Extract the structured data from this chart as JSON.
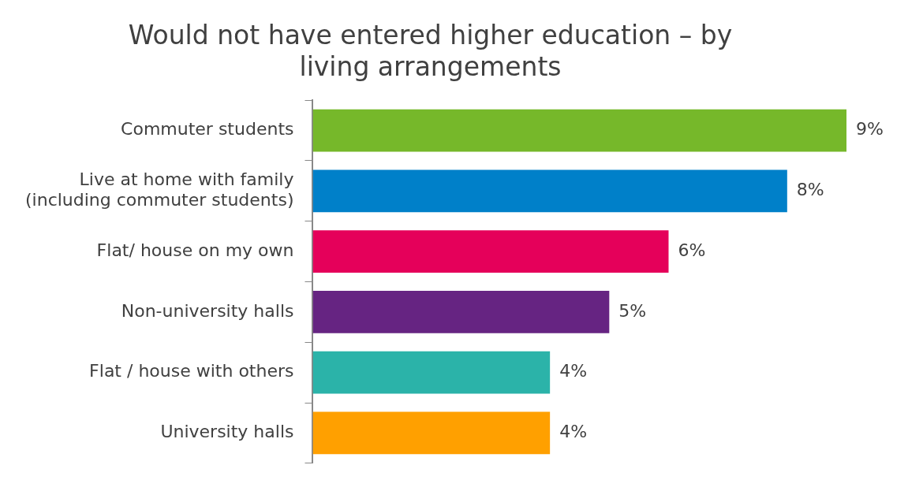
{
  "chart_data": {
    "type": "bar",
    "orientation": "horizontal",
    "title": "Would not have entered higher education – by living arrangements",
    "categories": [
      "Commuter students",
      "Live at home with family (including commuter students)",
      "Flat/ house on my own",
      "Non-university halls",
      "Flat / house with others",
      "University halls"
    ],
    "values": [
      9,
      8,
      6,
      5,
      4,
      4
    ],
    "colors": [
      "#76b82a",
      "#0080c9",
      "#e5005a",
      "#662482",
      "#2bb3a9",
      "#ffa000"
    ],
    "value_labels": [
      "9%",
      "8%",
      "6%",
      "5%",
      "4%",
      "4%"
    ]
  }
}
